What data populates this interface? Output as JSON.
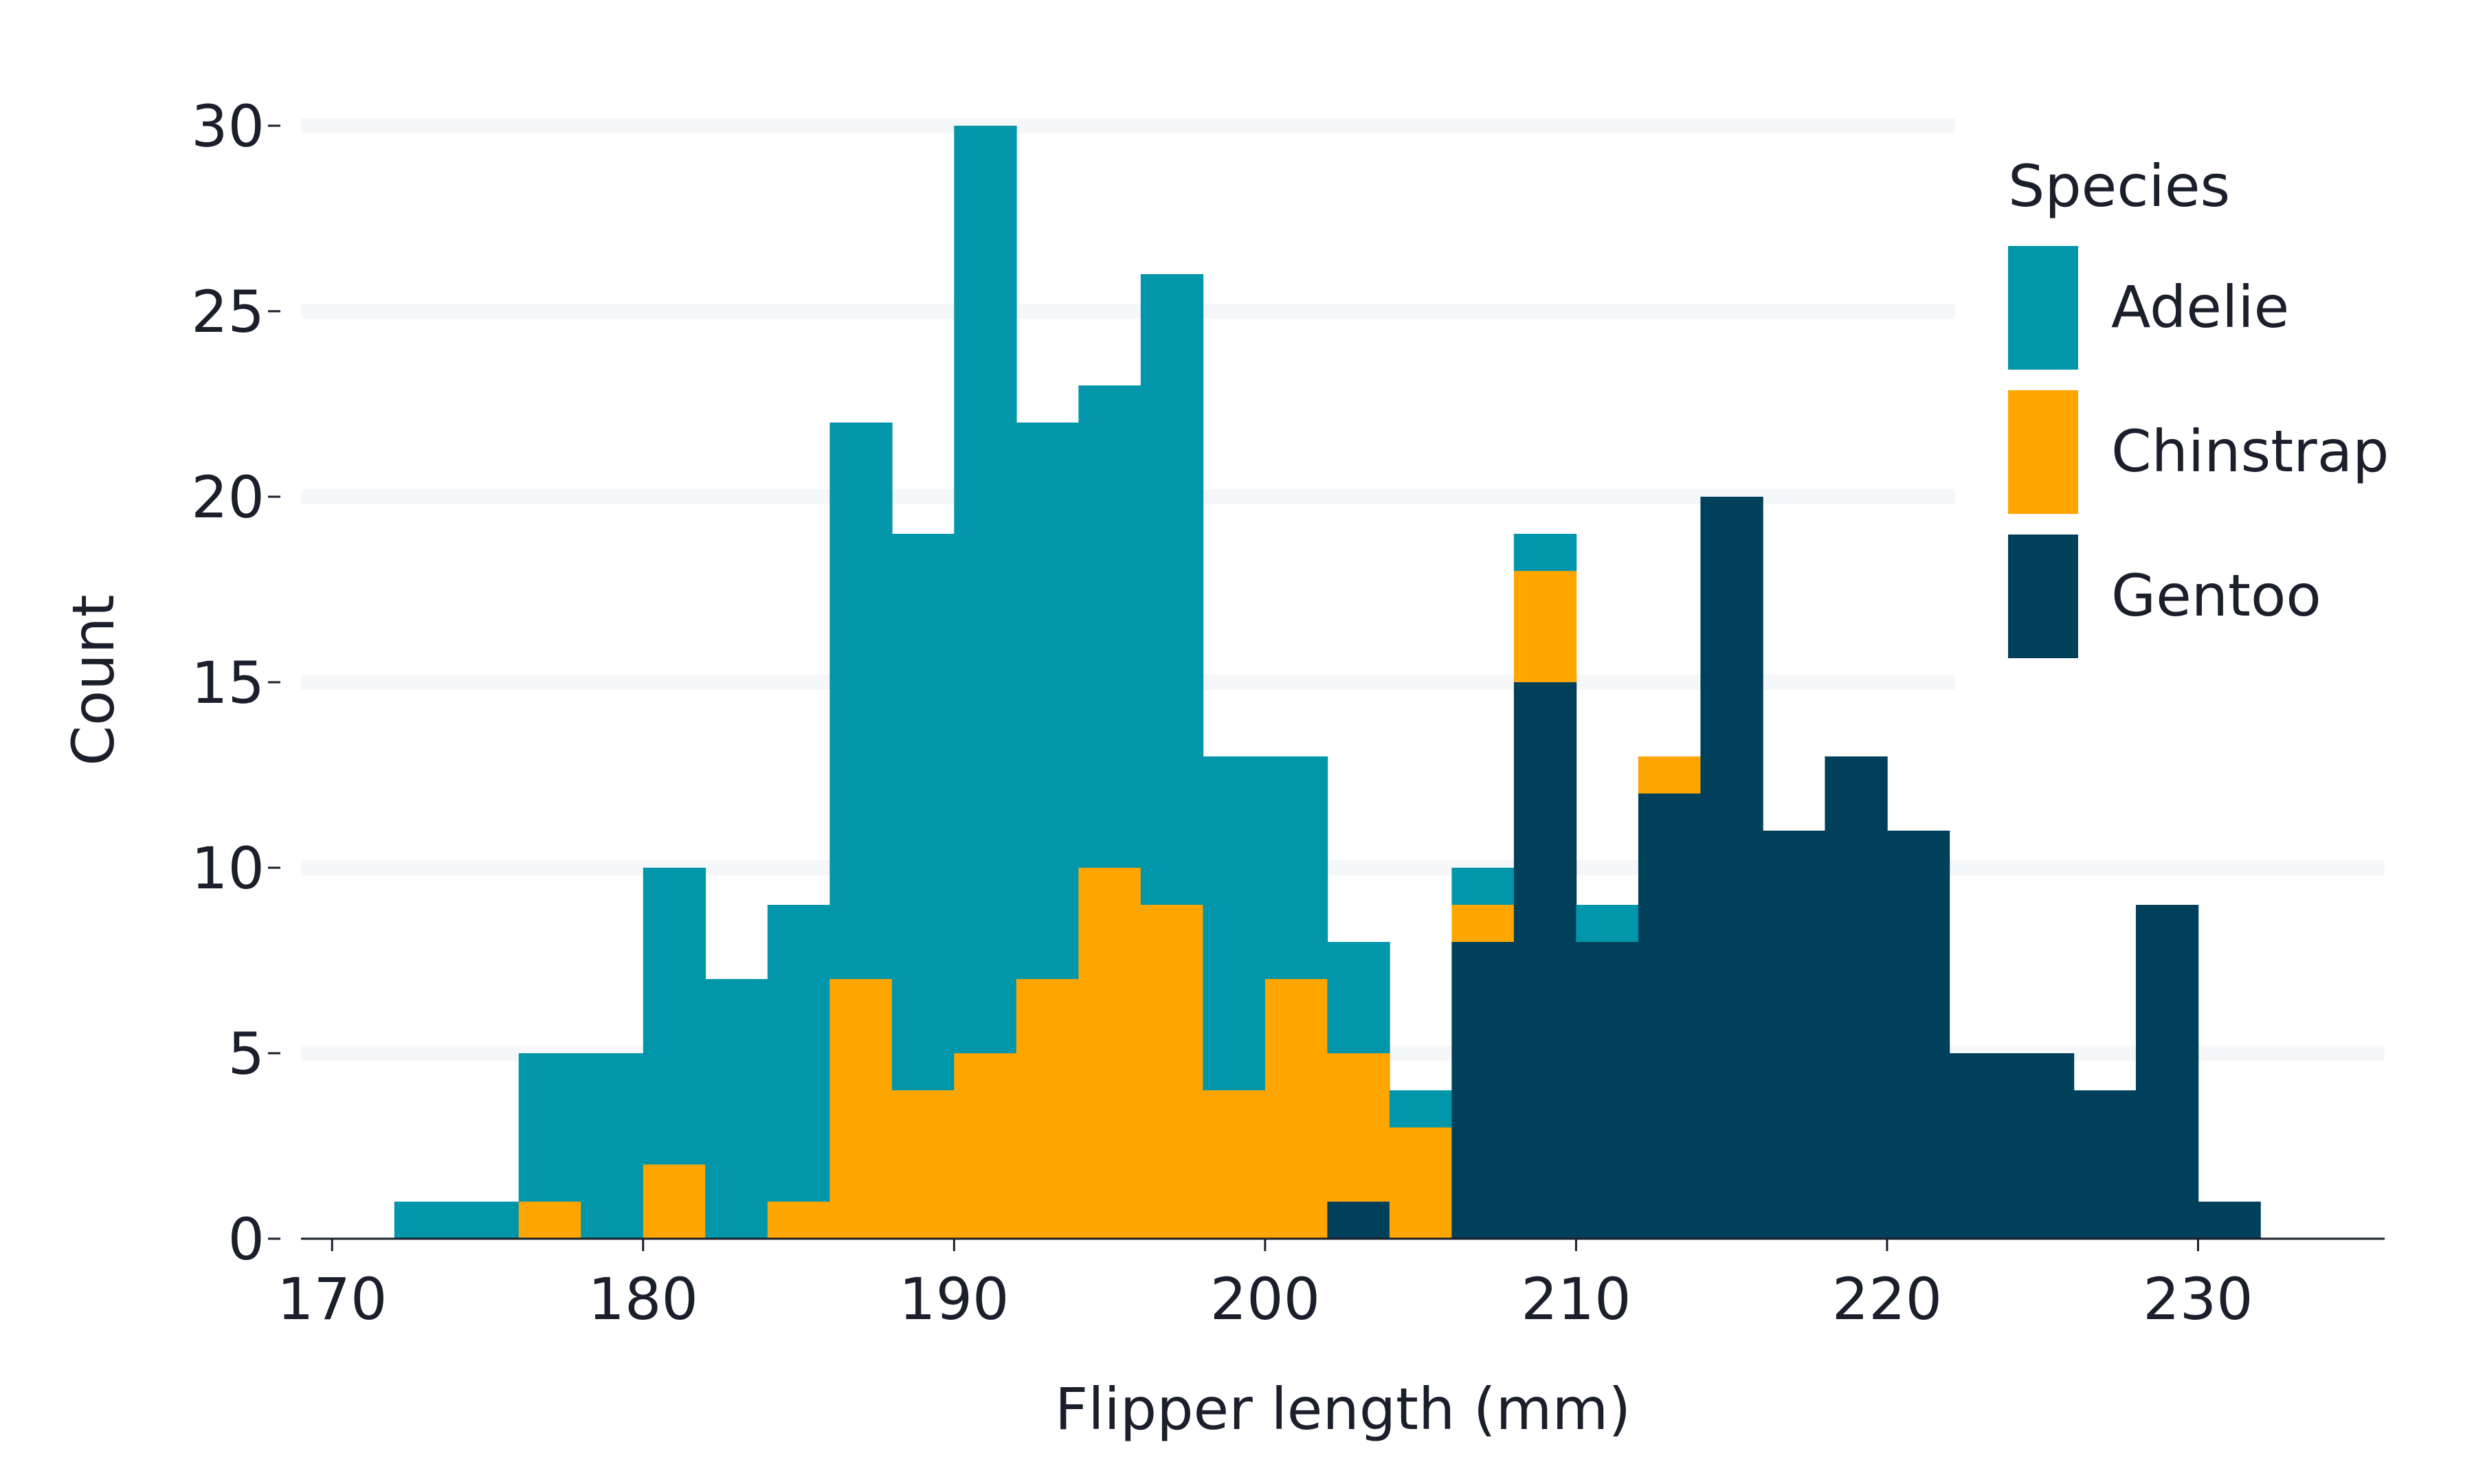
{
  "chart_data": {
    "type": "bar",
    "subtype": "stacked-histogram",
    "xlabel": "Flipper length (mm)",
    "ylabel": "Count",
    "xlim": [
      169,
      236
    ],
    "ylim": [
      0,
      30
    ],
    "x_ticks": [
      170,
      180,
      190,
      200,
      210,
      220,
      230
    ],
    "y_ticks": [
      0,
      5,
      10,
      15,
      20,
      25,
      30
    ],
    "grid": "horizontal",
    "bin_edges": [
      172,
      174,
      176,
      178,
      180,
      182,
      184,
      186,
      188,
      190,
      192,
      194,
      196,
      198,
      200,
      202,
      204,
      206,
      208,
      210,
      212,
      214,
      216,
      218,
      220,
      222,
      224,
      226,
      228,
      230,
      232
    ],
    "stack_order": [
      "Gentoo",
      "Chinstrap",
      "Adelie"
    ],
    "legend": {
      "title": "Species",
      "position": "top-right"
    },
    "series": [
      {
        "name": "Adelie",
        "color": "#0296ab",
        "values": [
          1,
          1,
          4,
          5,
          8,
          7,
          8,
          15,
          15,
          25,
          15,
          13,
          17,
          9,
          6,
          3,
          1,
          1,
          1,
          1,
          0,
          0,
          0,
          0,
          0,
          0,
          0,
          0,
          0,
          0,
          0
        ]
      },
      {
        "name": "Chinstrap",
        "color": "#fea500",
        "values": [
          0,
          0,
          1,
          0,
          2,
          0,
          1,
          7,
          4,
          5,
          7,
          10,
          9,
          4,
          7,
          4,
          3,
          1,
          3,
          0,
          1,
          0,
          0,
          0,
          0,
          0,
          0,
          0,
          0,
          0,
          0
        ]
      },
      {
        "name": "Gentoo",
        "color": "#00405b",
        "values": [
          0,
          0,
          0,
          0,
          0,
          0,
          0,
          0,
          0,
          0,
          0,
          0,
          0,
          0,
          0,
          1,
          0,
          8,
          15,
          8,
          12,
          20,
          11,
          13,
          11,
          5,
          5,
          4,
          9,
          1,
          0
        ]
      }
    ]
  }
}
